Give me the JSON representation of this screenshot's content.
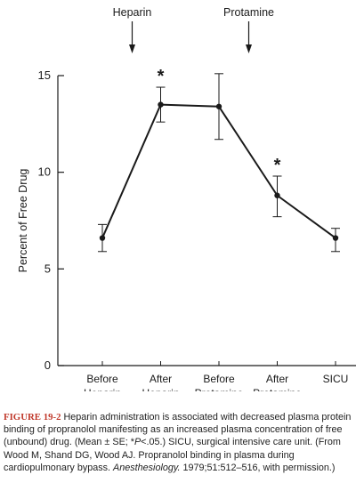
{
  "chart_data": {
    "type": "line",
    "categories": [
      [
        "Before",
        "Heparin"
      ],
      [
        "After",
        "Heparin"
      ],
      [
        "Before",
        "Protamine"
      ],
      [
        "After",
        "Protamine"
      ],
      [
        "SICU"
      ]
    ],
    "series": [
      {
        "name": "",
        "values": [
          6.6,
          13.5,
          13.4,
          8.8,
          6.6
        ],
        "error_high": [
          7.3,
          14.4,
          15.1,
          9.8,
          7.1
        ],
        "error_low": [
          5.9,
          12.6,
          11.7,
          7.7,
          5.9
        ]
      }
    ],
    "significance_markers": [
      {
        "category_index": 1,
        "symbol": "*"
      },
      {
        "category_index": 3,
        "symbol": "*"
      }
    ],
    "event_markers": [
      {
        "label": "Heparin",
        "category_index": 1
      },
      {
        "label": "Protamine",
        "category_index": 3
      }
    ],
    "xlabel": "",
    "ylabel": "Percent of Free Drug",
    "ylim": [
      0,
      15
    ],
    "yticks": [
      "0",
      "5",
      "10",
      "15"
    ],
    "grid": false
  },
  "caption": {
    "figure_label": "FIGURE 19-2",
    "text_main": " Heparin administration is associated with decreased plasma protein binding of propranolol manifesting as an increased plasma concentration of free (unbound) drug. (Mean ± SE; *",
    "p_symbol": "P",
    "text_after_p": "<.05.) SICU, surgical intensive care unit. (From Wood M, Shand DG, Wood AJ. Propranolol binding in plasma during cardiopulmonary bypass. ",
    "journal": "Anesthesiology.",
    "text_tail": " 1979;51:512–516, with permission.)"
  },
  "colors": {
    "ink": "#1a1a1a",
    "caption_label": "#c0392b"
  }
}
